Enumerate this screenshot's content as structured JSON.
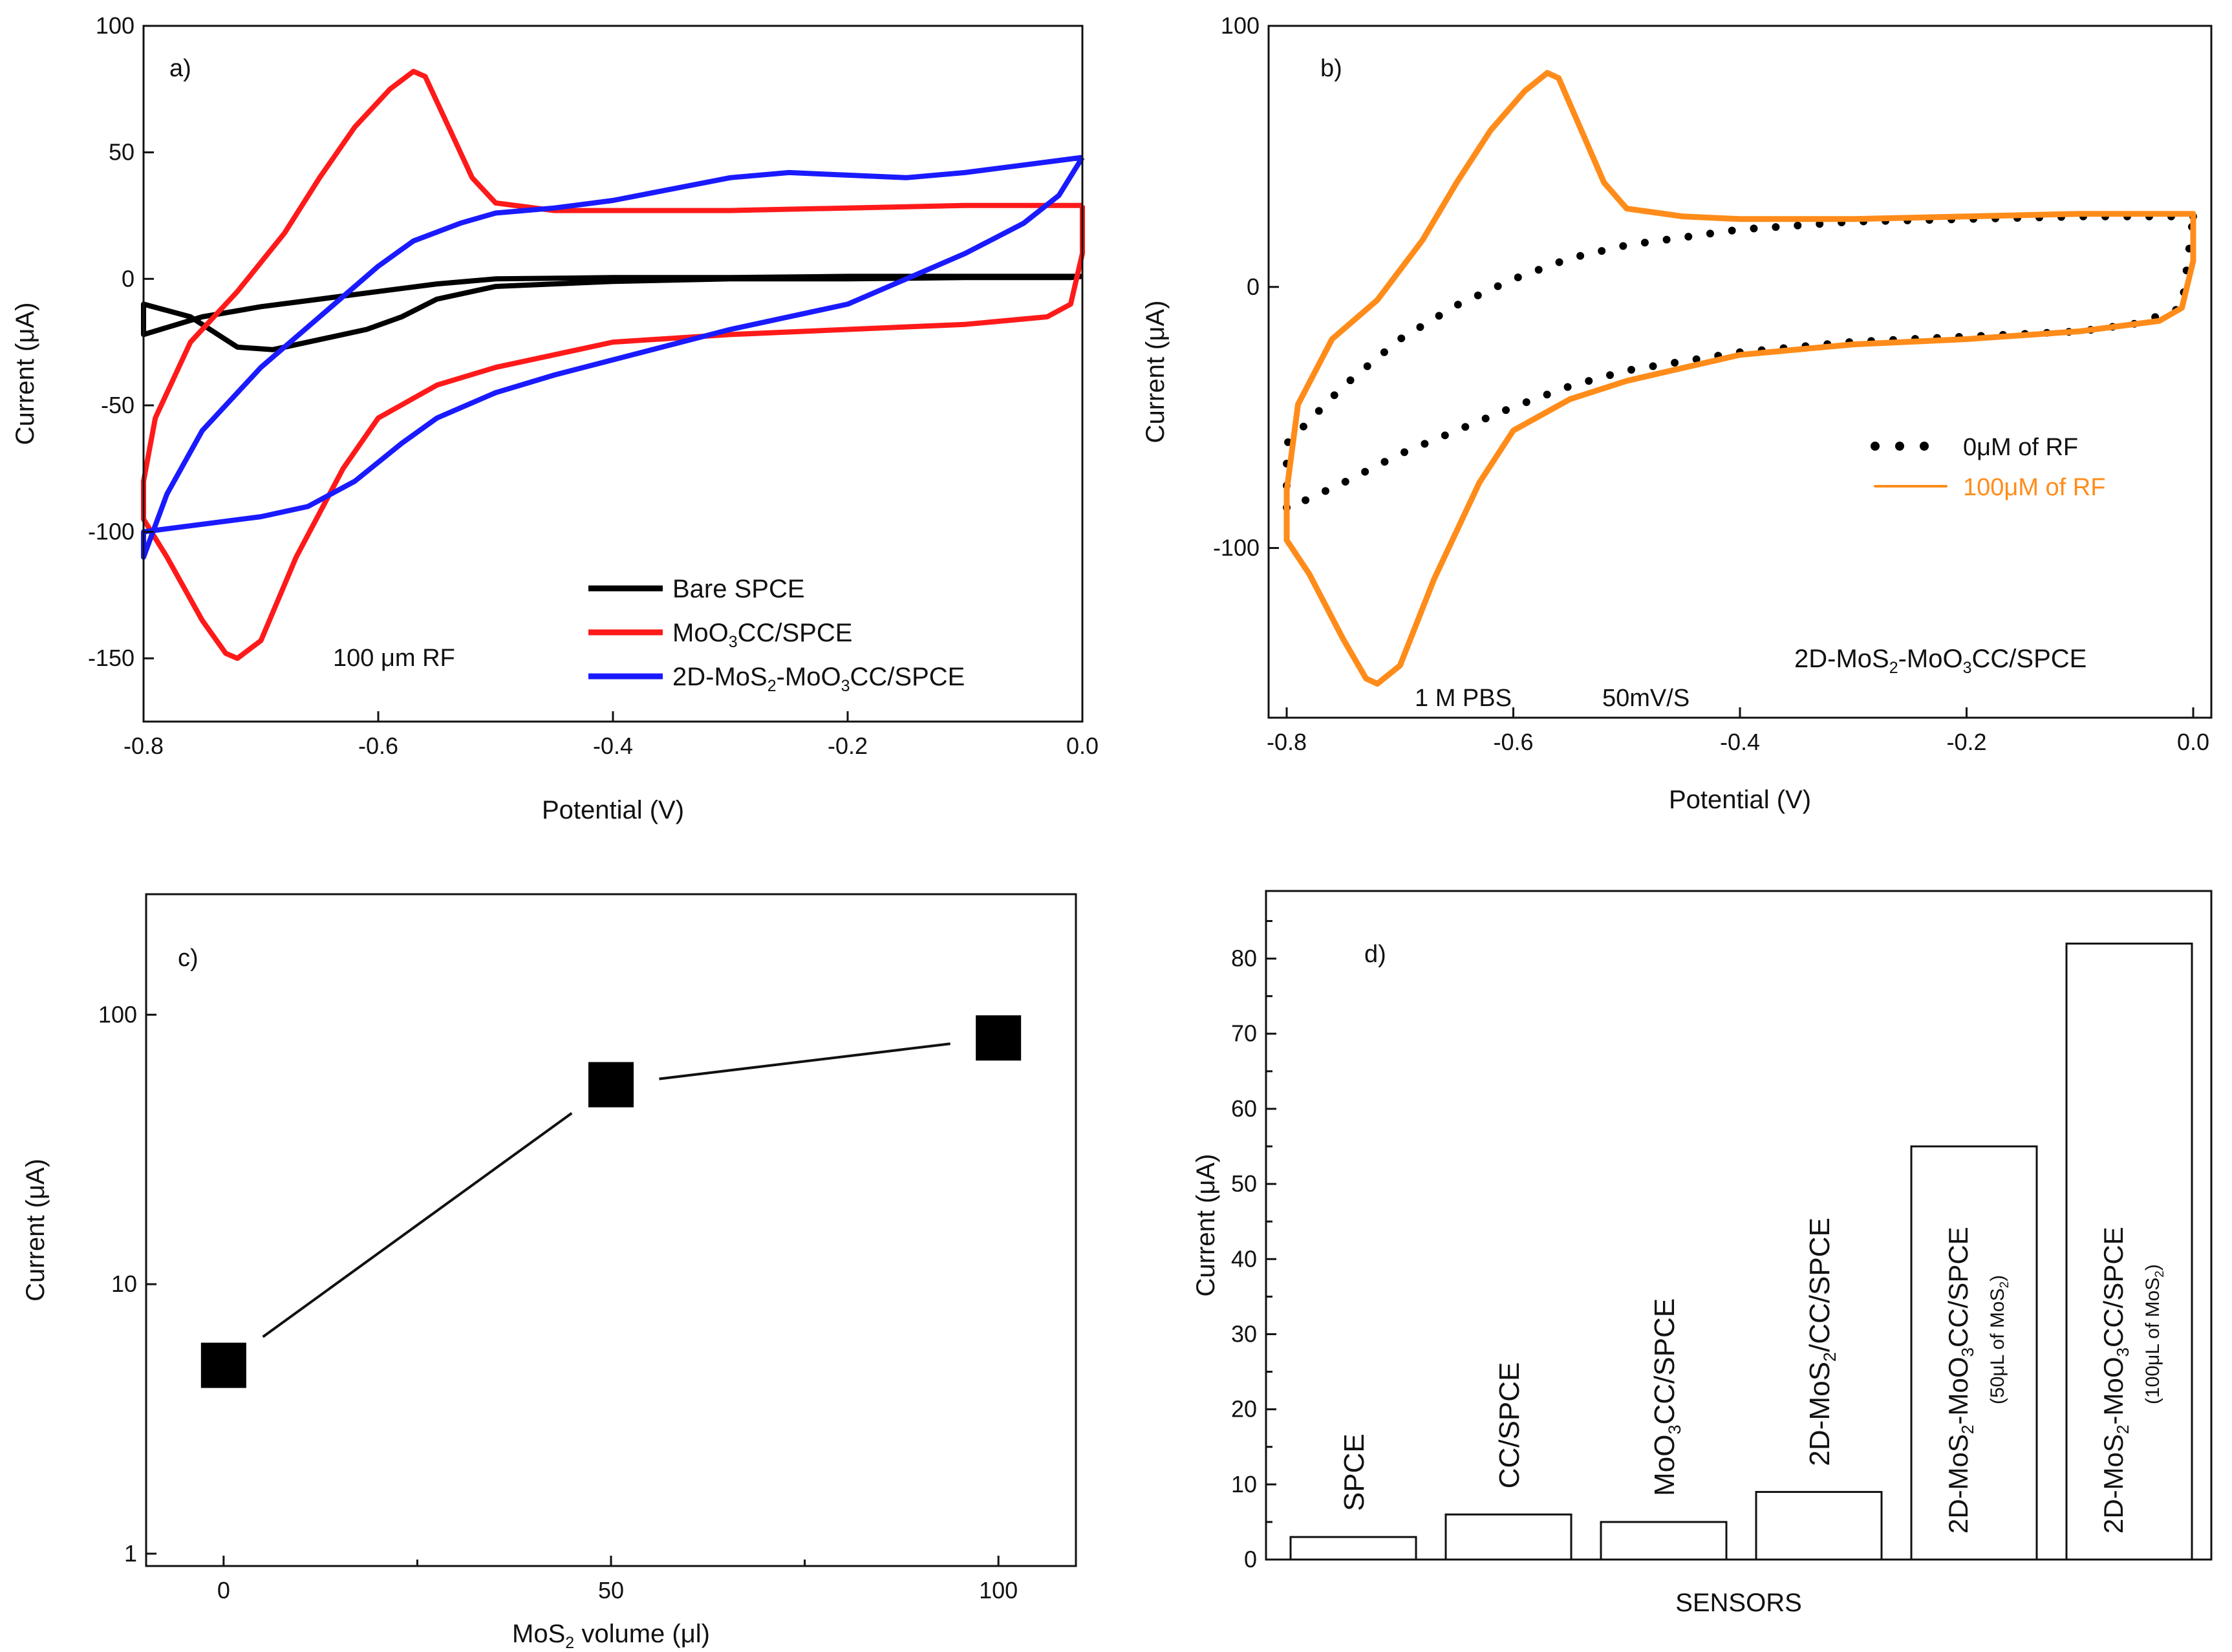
{
  "chart_data": [
    {
      "panel": "a)",
      "type": "line",
      "xlabel": "Potential (V)",
      "ylabel": "Current (μA)",
      "xlim": [
        -0.8,
        0.0
      ],
      "ylim": [
        -175,
        100
      ],
      "xticks": [
        -0.8,
        -0.6,
        -0.4,
        -0.2,
        0.0
      ],
      "xtick_labels": [
        "-0.8",
        "-0.6",
        "-0.4",
        "-0.2",
        "0.0"
      ],
      "yticks": [
        -150,
        -100,
        -50,
        0,
        50,
        100
      ],
      "ytick_labels": [
        "-150",
        "-100",
        "-50",
        "0",
        "50",
        "100"
      ],
      "annotation": "100 μm RF",
      "series": [
        {
          "name": "Bare SPCE",
          "color": "#000000",
          "points": [
            [
              0.0,
              1
            ],
            [
              -0.1,
              1
            ],
            [
              -0.2,
              1
            ],
            [
              -0.3,
              0.5
            ],
            [
              -0.4,
              0.5
            ],
            [
              -0.5,
              0
            ],
            [
              -0.55,
              -2
            ],
            [
              -0.6,
              -5
            ],
            [
              -0.65,
              -8
            ],
            [
              -0.7,
              -11
            ],
            [
              -0.75,
              -15
            ],
            [
              -0.8,
              -22
            ],
            [
              -0.8,
              -10
            ],
            [
              -0.76,
              -15
            ],
            [
              -0.72,
              -27
            ],
            [
              -0.69,
              -28
            ],
            [
              -0.65,
              -24
            ],
            [
              -0.61,
              -20
            ],
            [
              -0.58,
              -15
            ],
            [
              -0.55,
              -8
            ],
            [
              -0.5,
              -3
            ],
            [
              -0.4,
              -1
            ],
            [
              -0.3,
              0
            ],
            [
              -0.2,
              0
            ],
            [
              -0.1,
              0.5
            ],
            [
              -0.01,
              0.5
            ],
            [
              0.0,
              1
            ]
          ]
        },
        {
          "name": "MoO₃CC/SPCE",
          "color": "#ff1a1a",
          "points": [
            [
              0.0,
              29
            ],
            [
              -0.1,
              29
            ],
            [
              -0.2,
              28
            ],
            [
              -0.3,
              27
            ],
            [
              -0.4,
              27
            ],
            [
              -0.45,
              27
            ],
            [
              -0.5,
              30
            ],
            [
              -0.52,
              40
            ],
            [
              -0.54,
              60
            ],
            [
              -0.56,
              80
            ],
            [
              -0.57,
              82
            ],
            [
              -0.59,
              75
            ],
            [
              -0.62,
              60
            ],
            [
              -0.65,
              40
            ],
            [
              -0.68,
              18
            ],
            [
              -0.72,
              -5
            ],
            [
              -0.76,
              -25
            ],
            [
              -0.79,
              -55
            ],
            [
              -0.8,
              -80
            ],
            [
              -0.8,
              -95
            ],
            [
              -0.78,
              -110
            ],
            [
              -0.75,
              -135
            ],
            [
              -0.73,
              -148
            ],
            [
              -0.72,
              -150
            ],
            [
              -0.7,
              -143
            ],
            [
              -0.67,
              -110
            ],
            [
              -0.63,
              -75
            ],
            [
              -0.6,
              -55
            ],
            [
              -0.55,
              -42
            ],
            [
              -0.5,
              -35
            ],
            [
              -0.45,
              -30
            ],
            [
              -0.4,
              -25
            ],
            [
              -0.3,
              -22
            ],
            [
              -0.2,
              -20
            ],
            [
              -0.1,
              -18
            ],
            [
              -0.03,
              -15
            ],
            [
              -0.01,
              -10
            ],
            [
              0.0,
              10
            ],
            [
              0.0,
              29
            ]
          ]
        },
        {
          "name": "2D-MoS₂-MoO₃CC/SPCE",
          "color": "#1a1aff",
          "points": [
            [
              0.0,
              48
            ],
            [
              -0.05,
              45
            ],
            [
              -0.1,
              42
            ],
            [
              -0.15,
              40
            ],
            [
              -0.2,
              41
            ],
            [
              -0.25,
              42
            ],
            [
              -0.3,
              40
            ],
            [
              -0.4,
              31
            ],
            [
              -0.45,
              28
            ],
            [
              -0.5,
              26
            ],
            [
              -0.53,
              22
            ],
            [
              -0.57,
              15
            ],
            [
              -0.6,
              5
            ],
            [
              -0.65,
              -15
            ],
            [
              -0.7,
              -35
            ],
            [
              -0.75,
              -60
            ],
            [
              -0.78,
              -85
            ],
            [
              -0.8,
              -110
            ],
            [
              -0.8,
              -100
            ],
            [
              -0.75,
              -97
            ],
            [
              -0.7,
              -94
            ],
            [
              -0.66,
              -90
            ],
            [
              -0.62,
              -80
            ],
            [
              -0.58,
              -65
            ],
            [
              -0.55,
              -55
            ],
            [
              -0.5,
              -45
            ],
            [
              -0.45,
              -38
            ],
            [
              -0.4,
              -32
            ],
            [
              -0.35,
              -26
            ],
            [
              -0.3,
              -20
            ],
            [
              -0.2,
              -10
            ],
            [
              -0.15,
              0
            ],
            [
              -0.1,
              10
            ],
            [
              -0.05,
              22
            ],
            [
              -0.02,
              33
            ],
            [
              0.0,
              48
            ]
          ]
        }
      ]
    },
    {
      "panel": "b)",
      "type": "line",
      "xlabel": "Potential (V)",
      "ylabel": "Current (μA)",
      "xlim": [
        -0.8,
        0.0
      ],
      "ylim": [
        -165,
        100
      ],
      "xticks": [
        -0.8,
        -0.6,
        -0.4,
        -0.2,
        0.0
      ],
      "xtick_labels": [
        "-0.8",
        "-0.6",
        "-0.4",
        "-0.2",
        "0.0"
      ],
      "yticks": [
        -100,
        0,
        100
      ],
      "ytick_labels": [
        "-100",
        "0",
        "100"
      ],
      "annotations": [
        "1 M PBS",
        "50mV/S",
        "2D-MoS₂-MoO₃CC/SPCE"
      ],
      "series": [
        {
          "name": "0μM of RF",
          "color": "#000000",
          "style": "dotted",
          "points": [
            [
              0.0,
              27
            ],
            [
              -0.1,
              27
            ],
            [
              -0.2,
              26
            ],
            [
              -0.3,
              25
            ],
            [
              -0.4,
              22
            ],
            [
              -0.5,
              16
            ],
            [
              -0.55,
              11
            ],
            [
              -0.6,
              3
            ],
            [
              -0.65,
              -7
            ],
            [
              -0.7,
              -20
            ],
            [
              -0.75,
              -38
            ],
            [
              -0.8,
              -60
            ],
            [
              -0.8,
              -85
            ],
            [
              -0.75,
              -75
            ],
            [
              -0.7,
              -64
            ],
            [
              -0.65,
              -55
            ],
            [
              -0.6,
              -46
            ],
            [
              -0.55,
              -38
            ],
            [
              -0.5,
              -32
            ],
            [
              -0.4,
              -25
            ],
            [
              -0.3,
              -21
            ],
            [
              -0.2,
              -19
            ],
            [
              -0.1,
              -17
            ],
            [
              -0.05,
              -14
            ],
            [
              -0.01,
              -8
            ],
            [
              0.0,
              27
            ]
          ]
        },
        {
          "name": "100μM of RF",
          "color": "#ff8c1a",
          "points": [
            [
              0.0,
              28
            ],
            [
              -0.1,
              28
            ],
            [
              -0.2,
              27
            ],
            [
              -0.3,
              26
            ],
            [
              -0.4,
              26
            ],
            [
              -0.45,
              27
            ],
            [
              -0.5,
              30
            ],
            [
              -0.52,
              40
            ],
            [
              -0.54,
              60
            ],
            [
              -0.56,
              80
            ],
            [
              -0.57,
              82
            ],
            [
              -0.59,
              75
            ],
            [
              -0.62,
              60
            ],
            [
              -0.65,
              40
            ],
            [
              -0.68,
              18
            ],
            [
              -0.72,
              -5
            ],
            [
              -0.76,
              -20
            ],
            [
              -0.79,
              -45
            ],
            [
              -0.8,
              -78
            ],
            [
              -0.8,
              -97
            ],
            [
              -0.78,
              -110
            ],
            [
              -0.75,
              -135
            ],
            [
              -0.73,
              -150
            ],
            [
              -0.72,
              -152
            ],
            [
              -0.7,
              -145
            ],
            [
              -0.67,
              -112
            ],
            [
              -0.63,
              -75
            ],
            [
              -0.6,
              -55
            ],
            [
              -0.55,
              -43
            ],
            [
              -0.5,
              -36
            ],
            [
              -0.45,
              -31
            ],
            [
              -0.4,
              -26
            ],
            [
              -0.3,
              -22
            ],
            [
              -0.2,
              -20
            ],
            [
              -0.1,
              -17
            ],
            [
              -0.03,
              -13
            ],
            [
              -0.01,
              -8
            ],
            [
              0.0,
              10
            ],
            [
              0.0,
              28
            ]
          ]
        }
      ]
    },
    {
      "panel": "c)",
      "type": "scatter",
      "xlabel": "MoS₂ volume (μl)",
      "ylabel": "Current (μA)",
      "yscale": "log",
      "xlim": [
        -10,
        110
      ],
      "ylim": [
        0.9,
        280
      ],
      "xticks": [
        0,
        50,
        100
      ],
      "xtick_labels": [
        "0",
        "50",
        "100"
      ],
      "yticks": [
        1,
        10,
        100
      ],
      "ytick_labels": [
        "1",
        "10",
        "100"
      ],
      "x": [
        0,
        50,
        100
      ],
      "y": [
        5,
        55,
        82
      ]
    },
    {
      "panel": "d)",
      "type": "bar",
      "xlabel": "SENSORS",
      "ylabel": "Current (μA)",
      "ylim": [
        0,
        89
      ],
      "yticks": [
        0,
        10,
        20,
        30,
        40,
        50,
        60,
        70,
        80
      ],
      "ytick_labels": [
        "0",
        "10",
        "20",
        "30",
        "40",
        "50",
        "60",
        "70",
        "80"
      ],
      "categories": [
        "SPCE",
        "CC/SPCE",
        "MoO₃CC/SPCE",
        "2D-MoS₂/CC/SPCE",
        "2D-MoS₂-MoO₃CC/SPCE",
        "2D-MoS₂-MoO₃CC/SPCE"
      ],
      "category_notes": [
        "",
        "",
        "",
        "",
        "(50μL of MoS₂)",
        "(100μL of MoS₂)"
      ],
      "values": [
        3,
        6,
        5,
        9,
        55,
        82
      ],
      "highlight_color": "#ff1a1a"
    }
  ]
}
